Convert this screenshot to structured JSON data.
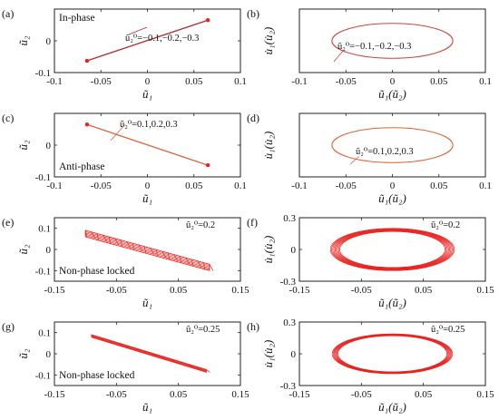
{
  "colors": {
    "red": "#e8231f",
    "darkred": "#b5262c",
    "orange": "#d9653a",
    "axis": "#222222"
  },
  "chart_data": [
    {
      "panel": "(a)",
      "type": "line",
      "legend": "In-phase",
      "annotation": "ũ₂⁰=−0.1,−0.2,−0.3",
      "xlabel": "ũ₁",
      "ylabel": "ũ₂",
      "xlim": [
        -0.1,
        0.1
      ],
      "ylim": [
        -0.1,
        0.1
      ],
      "xticks": [
        "-0.1",
        "-0.05",
        "0",
        "0.05",
        "0.1"
      ],
      "yticks": [
        "-0.1",
        "0"
      ],
      "color": "#b5262c",
      "series": [
        {
          "x": [
            -0.065,
            0.065
          ],
          "y": [
            -0.063,
            0.065
          ]
        }
      ],
      "markers": {
        "x": [
          -0.065,
          0.065
        ],
        "y": [
          -0.063,
          0.065
        ]
      }
    },
    {
      "panel": "(b)",
      "type": "line",
      "annotation": "ũ₂⁰=−0.1,−0.2,−0.3",
      "xlabel": "ũ₁(ũ₂)",
      "ylabel": "u̇₁(u̇₂)",
      "xlim": [
        -0.1,
        0.1
      ],
      "ylim": [
        -0.1,
        0.1
      ],
      "xticks": [
        "-0.1",
        "-0.05",
        "0",
        "0.05",
        "0.1"
      ],
      "yticks": [],
      "color": "#d0453c",
      "ellipse": {
        "cx": 0,
        "cy": 0,
        "rx": 0.065,
        "ry": 0.055
      }
    },
    {
      "panel": "(c)",
      "type": "line",
      "legend": "Anti-phase",
      "annotation": "ũ₂⁰=0.1,0.2,0.3",
      "xlabel": "ũ₁",
      "ylabel": "ũ₂",
      "xlim": [
        -0.1,
        0.1
      ],
      "ylim": [
        -0.1,
        0.1
      ],
      "xticks": [
        "-0.1",
        "-0.05",
        "0",
        "0.05",
        "0.1"
      ],
      "yticks": [
        "-0.1",
        "0"
      ],
      "color": "#d9653a",
      "series": [
        {
          "x": [
            -0.065,
            0.065
          ],
          "y": [
            0.065,
            -0.063
          ]
        }
      ],
      "markers": {
        "x": [
          -0.065,
          0.065
        ],
        "y": [
          0.065,
          -0.063
        ]
      }
    },
    {
      "panel": "(d)",
      "type": "line",
      "annotation": "ũ₂⁰=0.1,0.2,0.3",
      "xlabel": "ũ₁(ũ₂)",
      "ylabel": "u̇₁(u̇₂)",
      "xlim": [
        -0.1,
        0.1
      ],
      "ylim": [
        -0.1,
        0.1
      ],
      "xticks": [
        "-0.1",
        "-0.05",
        "0",
        "0.05",
        "0.1"
      ],
      "yticks": [],
      "color": "#d9653a",
      "ellipse": {
        "cx": 0,
        "cy": 0,
        "rx": 0.065,
        "ry": 0.055
      }
    },
    {
      "panel": "(e)",
      "type": "line",
      "legend": "Non-phase locked",
      "annotation": "ũ₂⁰=0.2",
      "xlabel": "ũ₁",
      "ylabel": "ũ₂",
      "xlim": [
        -0.15,
        0.15
      ],
      "ylim": [
        -0.15,
        0.15
      ],
      "xticks": [
        "-0.15",
        "-0.05",
        "0.05",
        "0.15"
      ],
      "yticks": [
        "-0.1",
        "0",
        "0.1"
      ],
      "color": "#e8231f",
      "band": {
        "x_start": -0.1,
        "x_end": 0.1,
        "y_top_start": 0.09,
        "y_top_end": -0.07,
        "thickness": 0.03,
        "lines": 22
      }
    },
    {
      "panel": "(f)",
      "type": "line",
      "annotation": "ũ₂⁰=0.2",
      "xlabel": "ũ₁(ũ₂)",
      "ylabel": "u̇₁(u̇₂)",
      "xlim": [
        -0.15,
        0.15
      ],
      "ylim": [
        -0.3,
        0.3
      ],
      "xticks": [
        "-0.15",
        "-0.05",
        "0.05",
        "0.15"
      ],
      "yticks": [
        "-0.3",
        "0",
        "0.3"
      ],
      "color": "#e8231f",
      "ellipses": {
        "rx_min": 0.085,
        "rx_max": 0.1,
        "ry_min": 0.17,
        "ry_max": 0.2,
        "count": 9
      }
    },
    {
      "panel": "(g)",
      "type": "line",
      "legend": "Non-phase locked",
      "annotation": "ũ₂⁰=0.25",
      "xlabel": "ũ₁",
      "ylabel": "ũ₂",
      "xlim": [
        -0.15,
        0.15
      ],
      "ylim": [
        -0.15,
        0.15
      ],
      "xticks": [
        "-0.15",
        "-0.05",
        "0.05",
        "0.15"
      ],
      "yticks": [
        "-0.1",
        "0",
        "0.1"
      ],
      "color": "#e8231f",
      "band": {
        "x_start": -0.09,
        "x_end": 0.095,
        "y_top_start": 0.09,
        "y_top_end": -0.075,
        "thickness": 0.012,
        "lines": 14
      }
    },
    {
      "panel": "(h)",
      "type": "line",
      "annotation": "ũ₂⁰=0.25",
      "xlabel": "ũ₁(ũ₂)",
      "ylabel": "u̇₁(u̇₂)",
      "xlim": [
        -0.15,
        0.15
      ],
      "ylim": [
        -0.3,
        0.3
      ],
      "xticks": [
        "-0.15",
        "-0.05",
        "0.05",
        "0.15"
      ],
      "yticks": [
        "-0.3",
        "0",
        "0.3"
      ],
      "color": "#e8231f",
      "ellipses": {
        "rx_min": 0.088,
        "rx_max": 0.097,
        "ry_min": 0.17,
        "ry_max": 0.188,
        "count": 7
      }
    }
  ]
}
